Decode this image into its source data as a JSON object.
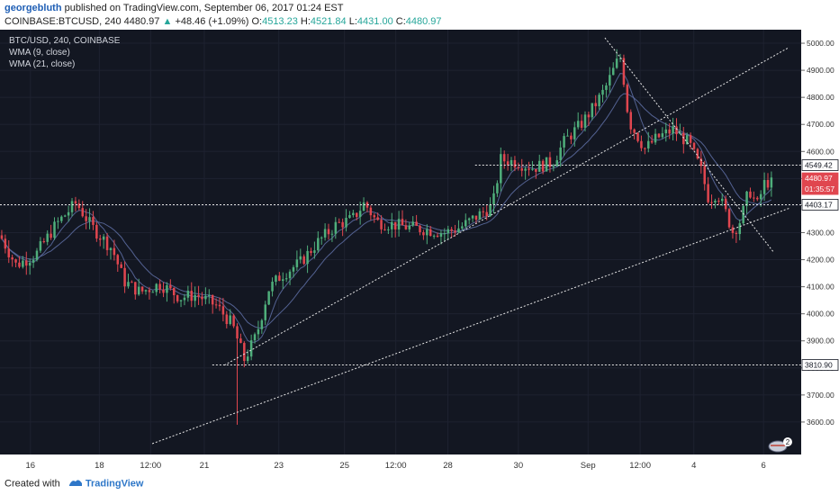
{
  "header": {
    "author": "georgebluth",
    "published_text": "published on TradingView.com, September 06, 2017 01:24 EST",
    "symbol": "COINBASE:BTCUSD, 240",
    "last": "4480.97",
    "change": "+48.46 (+1.09%)",
    "open_label": "O:",
    "open": "4513.23",
    "high_label": "H:",
    "high": "4521.84",
    "low_label": "L:",
    "low": "4431.00",
    "close_label": "C:",
    "close": "4480.97"
  },
  "legend": {
    "line1": "BTC/USD, 240, COINBASE",
    "line2": "WMA (9, close)",
    "line3": "WMA (21, close)"
  },
  "footer": {
    "created_with": "Created with",
    "brand": "TradingView"
  },
  "badge_count": "2",
  "colors": {
    "background": "#131722",
    "up": "#4fae7b",
    "down": "#e0464f",
    "wma": "#5b6a9e",
    "annotation": "#e6e6e6"
  },
  "chart_data": {
    "type": "candlestick",
    "title": "BTC/USD, 240, COINBASE",
    "ylim": [
      3480,
      5050
    ],
    "y_ticks": [
      3600,
      3700,
      3800,
      3900,
      4000,
      4100,
      4200,
      4300,
      4400,
      4500,
      4600,
      4700,
      4800,
      4900,
      5000
    ],
    "x_tick_labels": [
      "16",
      "18",
      "12:00",
      "21",
      "23",
      "25",
      "12:00",
      "28",
      "30",
      "Sep",
      "12:00",
      "4",
      "6"
    ],
    "price_labels": [
      {
        "label": "4549.42",
        "value": 4549.42,
        "kind": "level"
      },
      {
        "label": "4480.97",
        "value": 4480.97,
        "kind": "last"
      },
      {
        "label": "01:35:57",
        "value": 4480.97,
        "kind": "countdown"
      },
      {
        "label": "4403.17",
        "value": 4403.17,
        "kind": "level"
      },
      {
        "label": "3810.90",
        "value": 3810.9,
        "kind": "level"
      }
    ],
    "horizontal_levels": [
      4549.42,
      4403.17,
      3810.9
    ],
    "trendlines": [
      {
        "from": [
          0.28,
          3810
        ],
        "to": [
          0.985,
          4985
        ]
      },
      {
        "from": [
          0.19,
          3520
        ],
        "to": [
          0.985,
          4390
        ]
      },
      {
        "from": [
          0.755,
          5020
        ],
        "to": [
          0.965,
          4230
        ]
      }
    ],
    "anchors": [
      [
        0.0,
        4290
      ],
      [
        0.02,
        4180
      ],
      [
        0.045,
        4220
      ],
      [
        0.07,
        4330
      ],
      [
        0.095,
        4410
      ],
      [
        0.115,
        4320
      ],
      [
        0.14,
        4240
      ],
      [
        0.155,
        4120
      ],
      [
        0.175,
        4080
      ],
      [
        0.2,
        4110
      ],
      [
        0.225,
        4060
      ],
      [
        0.245,
        4070
      ],
      [
        0.27,
        4030
      ],
      [
        0.29,
        3960
      ],
      [
        0.305,
        3830
      ],
      [
        0.32,
        3920
      ],
      [
        0.335,
        4090
      ],
      [
        0.35,
        4140
      ],
      [
        0.375,
        4190
      ],
      [
        0.395,
        4260
      ],
      [
        0.42,
        4330
      ],
      [
        0.44,
        4350
      ],
      [
        0.455,
        4410
      ],
      [
        0.47,
        4340
      ],
      [
        0.49,
        4330
      ],
      [
        0.51,
        4320
      ],
      [
        0.535,
        4310
      ],
      [
        0.555,
        4300
      ],
      [
        0.575,
        4320
      ],
      [
        0.6,
        4370
      ],
      [
        0.615,
        4400
      ],
      [
        0.625,
        4570
      ],
      [
        0.645,
        4560
      ],
      [
        0.665,
        4540
      ],
      [
        0.69,
        4560
      ],
      [
        0.705,
        4640
      ],
      [
        0.725,
        4700
      ],
      [
        0.74,
        4760
      ],
      [
        0.755,
        4830
      ],
      [
        0.77,
        4930
      ],
      [
        0.775,
        4950
      ],
      [
        0.785,
        4710
      ],
      [
        0.805,
        4610
      ],
      [
        0.82,
        4650
      ],
      [
        0.84,
        4680
      ],
      [
        0.86,
        4630
      ],
      [
        0.875,
        4530
      ],
      [
        0.885,
        4420
      ],
      [
        0.895,
        4450
      ],
      [
        0.905,
        4380
      ],
      [
        0.915,
        4300
      ],
      [
        0.925,
        4350
      ],
      [
        0.935,
        4460
      ],
      [
        0.945,
        4400
      ],
      [
        0.955,
        4490
      ],
      [
        0.965,
        4480
      ]
    ]
  }
}
